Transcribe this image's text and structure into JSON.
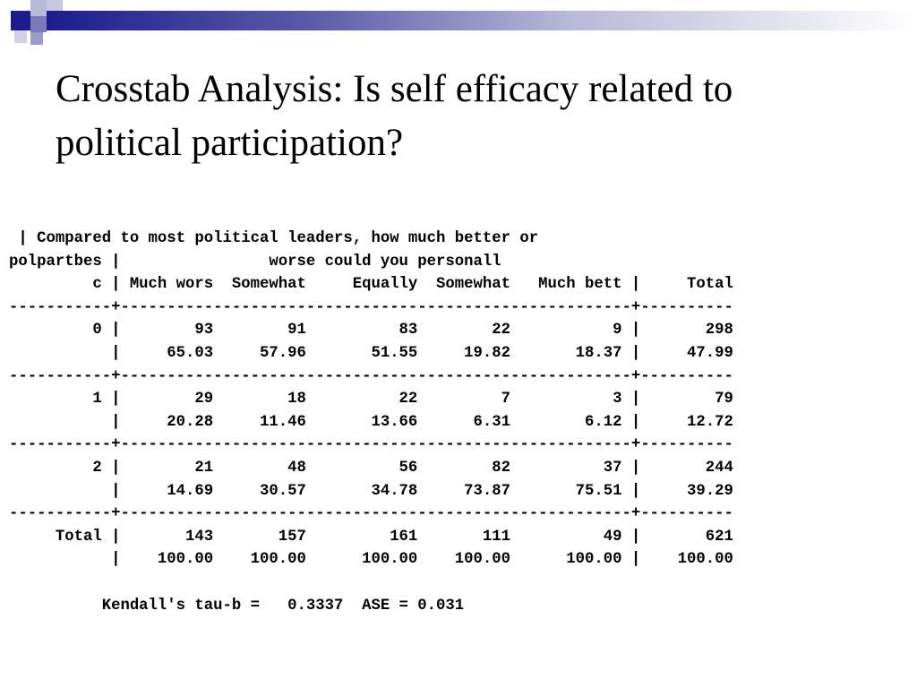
{
  "slide": {
    "title_line1": "Crosstab Analysis: Is self efficacy related to",
    "title_line2": "political participation?"
  },
  "crosstab": {
    "lines": [
      " | Compared to most political leaders, how much better or",
      "polpartbes |                worse could you personall",
      "         c | Much wors  Somewhat     Equally  Somewhat   Much bett |     Total",
      "-----------+-------------------------------------------------------+----------",
      "         0 |        93        91          83        22           9 |       298",
      "           |     65.03     57.96       51.55     19.82       18.37 |     47.99",
      "-----------+-------------------------------------------------------+----------",
      "         1 |        29        18          22         7           3 |        79",
      "           |     20.28     11.46       13.66      6.31        6.12 |     12.72",
      "-----------+-------------------------------------------------------+----------",
      "         2 |        21        48          56        82          37 |       244",
      "           |     14.69     30.57       34.78     73.87       75.51 |     39.29",
      "-----------+-------------------------------------------------------+----------",
      "     Total |       143       157         161       111          49 |       621",
      "           |    100.00    100.00      100.00    100.00      100.00 |    100.00",
      "",
      "          Kendall's tau-b =   0.3337  ASE = 0.031"
    ]
  },
  "colors": {
    "brand_navy": "#1c1c8c",
    "brand_mid": "#5a5aa8",
    "brand_light": "#b8b8d8"
  }
}
